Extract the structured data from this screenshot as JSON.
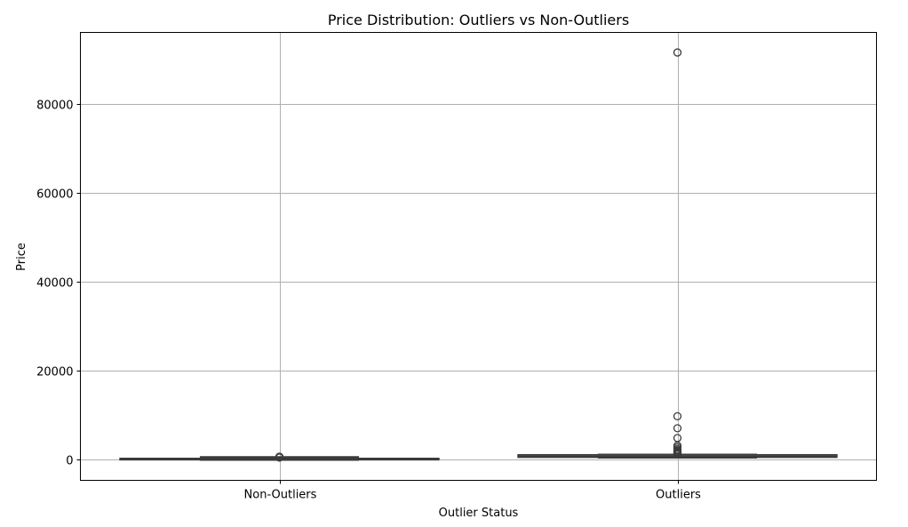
{
  "chart_data": {
    "type": "box",
    "title": "Price Distribution: Outliers vs Non-Outliers",
    "xlabel": "Outlier Status",
    "ylabel": "Price",
    "categories": [
      "Non-Outliers",
      "Outliers"
    ],
    "ylim": [
      -4600,
      96000
    ],
    "yticks": [
      0,
      20000,
      40000,
      60000,
      80000
    ],
    "ytick_labels": [
      "0",
      "20000",
      "40000",
      "60000",
      "80000"
    ],
    "grid": true,
    "box_color": "#3b3b3b",
    "grid_color": "#b0b0b0",
    "boxes": [
      {
        "category": "Non-Outliers",
        "whisker_low": 0,
        "q1": 60,
        "median": 140,
        "q3": 290,
        "whisker_high": 650,
        "fliers": [
          520,
          560,
          600,
          640,
          700
        ]
      },
      {
        "category": "Outliers",
        "whisker_low": 500,
        "q1": 620,
        "median": 700,
        "q3": 1100,
        "whisker_high": 1200,
        "fliers": [
          1300,
          1500,
          1700,
          1900,
          2100,
          2400,
          2800,
          3200,
          4900,
          7100,
          9800,
          91500
        ]
      }
    ]
  }
}
